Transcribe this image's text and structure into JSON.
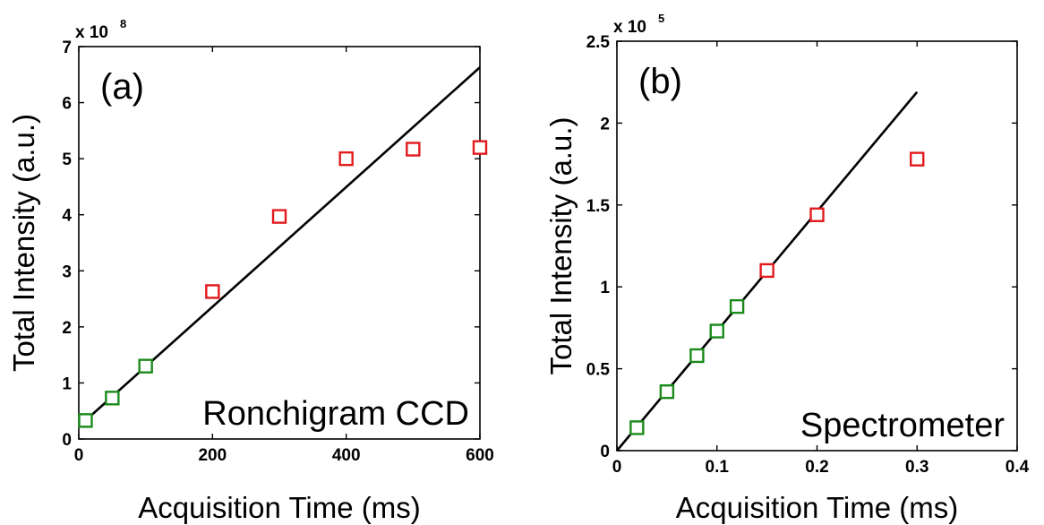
{
  "chart_data": [
    {
      "type": "scatter",
      "panel_label": "(a)",
      "annotation": "Ronchigram CCD",
      "xlabel": "Acquisition Time (ms)",
      "ylabel": "Total Intensity (a.u.)",
      "y_multiplier": {
        "base": "x 10",
        "exponent": "8"
      },
      "xlim": [
        0,
        600
      ],
      "ylim": [
        0,
        7
      ],
      "x_ticks": [
        0,
        200,
        400,
        600
      ],
      "y_ticks": [
        0,
        1,
        2,
        3,
        4,
        5,
        6,
        7
      ],
      "grid": false,
      "series": [
        {
          "color": "#1a8a1a",
          "marker": "square",
          "x": [
            10,
            50,
            100
          ],
          "y": [
            0.33,
            0.73,
            1.3
          ]
        },
        {
          "color": "#e31a1c",
          "marker": "square",
          "x": [
            200,
            300,
            400,
            500,
            600
          ],
          "y": [
            2.63,
            3.97,
            5.0,
            5.17,
            5.2
          ]
        }
      ],
      "fit_line": {
        "color": "#000000",
        "x": [
          10,
          600
        ],
        "y": [
          0.33,
          6.63
        ]
      }
    },
    {
      "type": "scatter",
      "panel_label": "(b)",
      "annotation": "Spectrometer",
      "xlabel": "Acquisition Time (ms)",
      "ylabel": "Total Intensity (a.u.)",
      "y_multiplier": {
        "base": "x 10",
        "exponent": "5"
      },
      "xlim": [
        0,
        0.4
      ],
      "ylim": [
        0,
        2.5
      ],
      "x_ticks": [
        0,
        0.1,
        0.2,
        0.3,
        0.4
      ],
      "y_ticks": [
        0,
        0.5,
        1,
        1.5,
        2,
        2.5
      ],
      "grid": false,
      "series": [
        {
          "color": "#1a8a1a",
          "marker": "square",
          "x": [
            0.02,
            0.05,
            0.08,
            0.1,
            0.12
          ],
          "y": [
            0.14,
            0.36,
            0.58,
            0.73,
            0.88
          ]
        },
        {
          "color": "#e31a1c",
          "marker": "square",
          "x": [
            0.15,
            0.2,
            0.3
          ],
          "y": [
            1.1,
            1.44,
            1.78
          ]
        }
      ],
      "fit_line": {
        "color": "#000000",
        "x": [
          0,
          0.3
        ],
        "y": [
          0,
          2.19
        ]
      }
    }
  ]
}
